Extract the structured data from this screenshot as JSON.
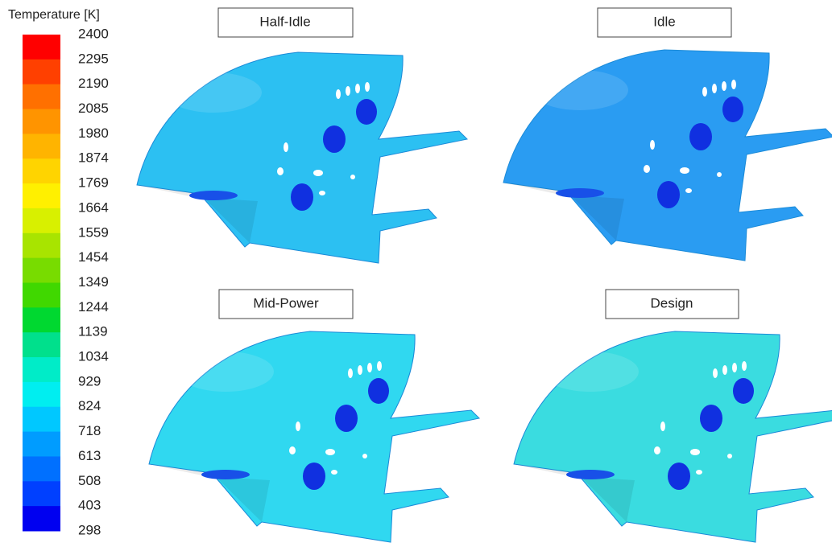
{
  "legend": {
    "title": "Temperature [K]",
    "ticks": [
      2400,
      2295,
      2190,
      2085,
      1980,
      1874,
      1769,
      1664,
      1559,
      1454,
      1349,
      1244,
      1139,
      1034,
      929,
      824,
      718,
      613,
      508,
      403,
      298
    ],
    "colors": [
      "#ff0000",
      "#ff4000",
      "#ff7000",
      "#ff9400",
      "#ffb400",
      "#ffd400",
      "#fff000",
      "#d8f000",
      "#a8e400",
      "#78dc00",
      "#40d800",
      "#00d830",
      "#00e08c",
      "#00ecc8",
      "#00eef0",
      "#00c8ff",
      "#009cff",
      "#0070ff",
      "#0040ff",
      "#0000f0"
    ]
  },
  "panels": [
    {
      "title": "Half-Idle",
      "color": "#2cc0f2"
    },
    {
      "title": "Idle",
      "color": "#2a9cf2"
    },
    {
      "title": "Mid-Power",
      "color": "#30d8f0"
    },
    {
      "title": "Design",
      "color": "#3adce0"
    }
  ]
}
